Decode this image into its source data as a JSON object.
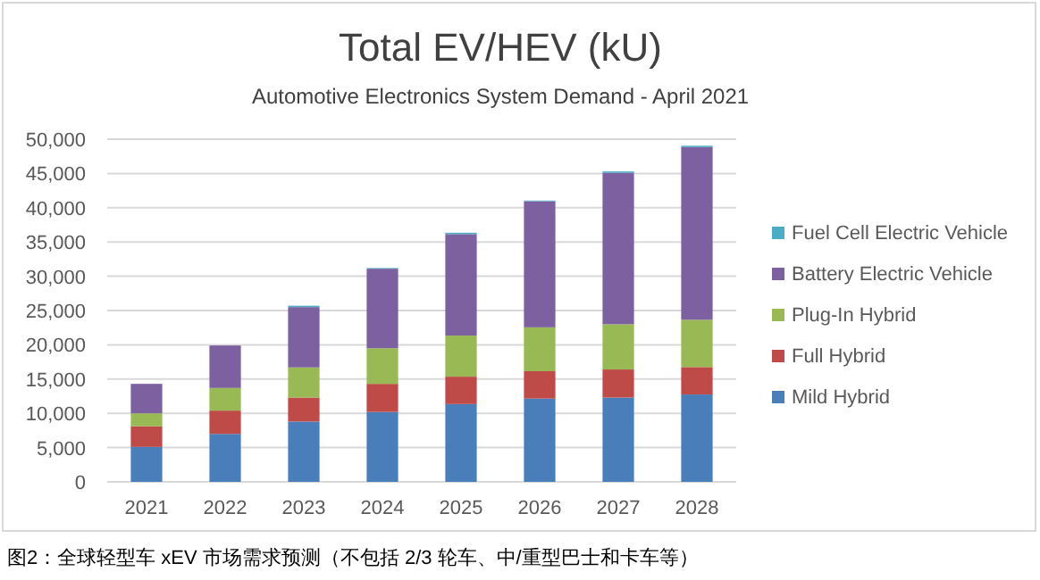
{
  "chart_data": {
    "type": "bar",
    "title": "Total EV/HEV (kU)",
    "subtitle": "Automotive Electronics System Demand - April 2021",
    "categories": [
      "2021",
      "2022",
      "2023",
      "2024",
      "2025",
      "2026",
      "2027",
      "2028"
    ],
    "stacked": true,
    "series": [
      {
        "name": "Mild Hybrid",
        "color": "#4a7ebb",
        "values": [
          5100,
          7000,
          8800,
          10200,
          11350,
          12150,
          12300,
          12750
        ]
      },
      {
        "name": "Full Hybrid",
        "color": "#be4b48",
        "values": [
          3000,
          3400,
          3500,
          4100,
          4000,
          4000,
          4100,
          4000
        ]
      },
      {
        "name": "Plug-In Hybrid",
        "color": "#98b954",
        "values": [
          1900,
          3300,
          4400,
          5200,
          6000,
          6400,
          6600,
          6900
        ]
      },
      {
        "name": "Battery Electric Vehicle",
        "color": "#7d60a0",
        "values": [
          4300,
          6200,
          8800,
          11600,
          14800,
          18400,
          22100,
          25200
        ]
      },
      {
        "name": "Fuel Cell Electric Vehicle",
        "color": "#4bacc6",
        "values": [
          0,
          0,
          200,
          100,
          200,
          100,
          200,
          200
        ]
      }
    ],
    "ylim": [
      0,
      50000
    ],
    "yticks": [
      0,
      {
        "value": 5000,
        "label": "5,000"
      },
      {
        "value": 10000,
        "label": "10,000"
      },
      {
        "value": 15000,
        "label": "15,000"
      },
      {
        "value": 20000,
        "label": "20,000"
      },
      {
        "value": 25000,
        "label": "25,000"
      },
      {
        "value": 30000,
        "label": "30,000"
      },
      {
        "value": 35000,
        "label": "35,000"
      },
      {
        "value": 40000,
        "label": "40,000"
      },
      {
        "value": 45000,
        "label": "45,000"
      },
      {
        "value": 50000,
        "label": "50,000"
      }
    ],
    "grid": "y",
    "legend": "right",
    "annotations": [
      "图2：全球轻型车 xEV 市场需求预测（不包括 2/3 轮车、中/重型巴士和卡车等）"
    ]
  }
}
